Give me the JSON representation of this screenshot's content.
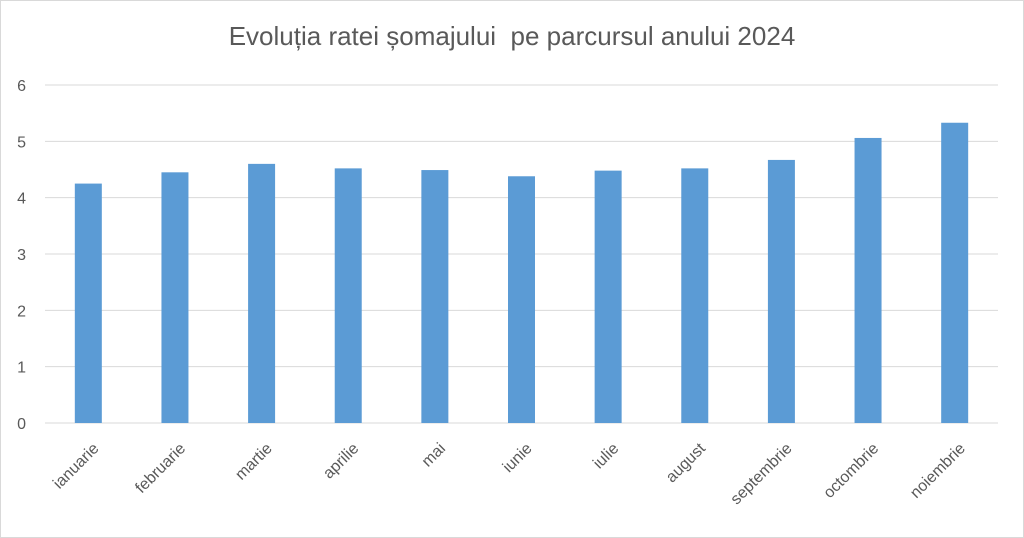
{
  "chart_data": {
    "type": "bar",
    "title": "Evoluția ratei șomajului  pe parcursul anului 2024",
    "xlabel": "",
    "ylabel": "",
    "categories": [
      "ianuarie",
      "februarie",
      "martie",
      "aprilie",
      "mai",
      "iunie",
      "iulie",
      "august",
      "septembrie",
      "octombrie",
      "noiembrie"
    ],
    "values": [
      4.25,
      4.45,
      4.6,
      4.52,
      4.49,
      4.38,
      4.48,
      4.52,
      4.67,
      5.06,
      5.33
    ],
    "ylim": [
      0,
      6
    ],
    "yticks": [
      "0",
      "1",
      "2",
      "3",
      "4",
      "5",
      "6"
    ],
    "grid": true,
    "legend": "none",
    "bar_color": "#5b9bd5",
    "grid_color": "#d9d9d9"
  }
}
